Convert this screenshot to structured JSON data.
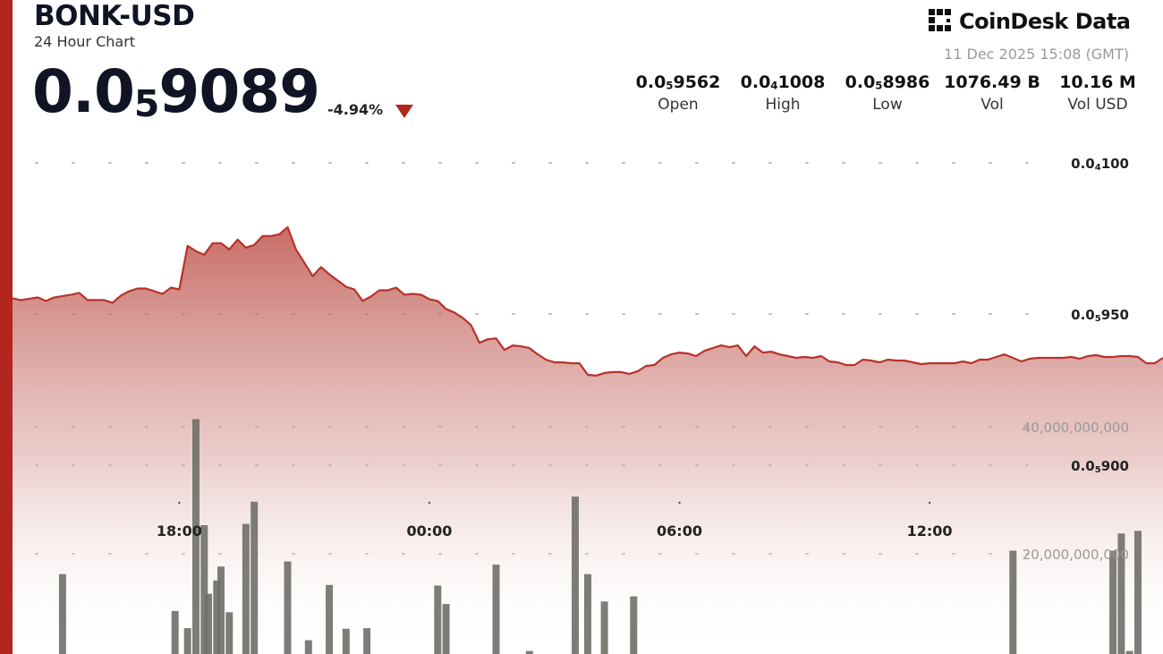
{
  "header": {
    "pair": "BONK-USD",
    "subtitle": "24 Hour Chart",
    "price_main": "0.0",
    "price_sub": "5",
    "price_tail": "9089",
    "change": "-4.94%",
    "brand": "CoinDesk Data",
    "brand_icon": "coindesk-logo-icon",
    "timestamp": "11 Dec 2025 15:08 (GMT)"
  },
  "stats": [
    {
      "main": "0.0",
      "sub": "5",
      "tail": "9562",
      "label": "Open"
    },
    {
      "main": "0.0",
      "sub": "4",
      "tail": "1008",
      "label": "High"
    },
    {
      "main": "0.0",
      "sub": "5",
      "tail": "8986",
      "label": "Low"
    },
    {
      "main": "1076.49 B",
      "sub": "",
      "tail": "",
      "label": "Vol"
    },
    {
      "main": "10.16 M",
      "sub": "",
      "tail": "",
      "label": "Vol USD"
    }
  ],
  "colors": {
    "accent": "#b3261e",
    "line": "#b8322a",
    "volume_bar": "#6f6f68",
    "grid_dot": "#bdbdbd"
  },
  "chart_data": {
    "type": "area",
    "title": "",
    "xlabel": "",
    "ylabel": "",
    "x_ticks": [
      "18:00",
      "00:00",
      "06:00",
      "12:00"
    ],
    "y_ticks": [
      {
        "main": "0.0",
        "sub": "4",
        "tail": "100",
        "value": 1e-05
      },
      {
        "main": "0.0",
        "sub": "5",
        "tail": "950",
        "value": 9.5e-06
      },
      {
        "main": "0.0",
        "sub": "5",
        "tail": "900",
        "value": 9e-06
      }
    ],
    "ylim": [
      8.61e-06,
      1.02e-05
    ],
    "volume_ticks": [
      {
        "label": "40,000,000,000",
        "value": 40000000000
      },
      {
        "label": "20,000,000,000",
        "value": 20000000000
      }
    ],
    "volume_lim": [
      0,
      60000000000
    ],
    "grid": true,
    "price_series": [
      {
        "t": 0.0,
        "v": 9.552
      },
      {
        "t": 0.1,
        "v": 9.5461
      },
      {
        "t": 0.3,
        "v": 9.555
      },
      {
        "t": 0.4,
        "v": 9.5432
      },
      {
        "t": 0.5,
        "v": 9.555
      },
      {
        "t": 0.7,
        "v": 9.5638
      },
      {
        "t": 0.8,
        "v": 9.5697
      },
      {
        "t": 0.9,
        "v": 9.5461
      },
      {
        "t": 1.0,
        "v": 9.5461
      },
      {
        "t": 1.1,
        "v": 9.5461
      },
      {
        "t": 1.2,
        "v": 9.5373
      },
      {
        "t": 1.3,
        "v": 9.5609
      },
      {
        "t": 1.4,
        "v": 9.5756
      },
      {
        "t": 1.5,
        "v": 9.5844
      },
      {
        "t": 1.6,
        "v": 9.5844
      },
      {
        "t": 1.7,
        "v": 9.5756
      },
      {
        "t": 1.8,
        "v": 9.5667
      },
      {
        "t": 1.9,
        "v": 9.5873
      },
      {
        "t": 2.0,
        "v": 9.5815
      },
      {
        "t": 2.1,
        "v": 9.7255
      },
      {
        "t": 2.2,
        "v": 9.7079
      },
      {
        "t": 2.3,
        "v": 9.6961
      },
      {
        "t": 2.4,
        "v": 9.7343
      },
      {
        "t": 2.5,
        "v": 9.7343
      },
      {
        "t": 2.6,
        "v": 9.7137
      },
      {
        "t": 2.7,
        "v": 9.7461
      },
      {
        "t": 2.8,
        "v": 9.7196
      },
      {
        "t": 2.9,
        "v": 9.7284
      },
      {
        "t": 3.0,
        "v": 9.7579
      },
      {
        "t": 3.1,
        "v": 9.7579
      },
      {
        "t": 3.2,
        "v": 9.7637
      },
      {
        "t": 3.3,
        "v": 9.7873
      },
      {
        "t": 3.4,
        "v": 9.7137
      },
      {
        "t": 3.5,
        "v": 9.6696
      },
      {
        "t": 3.6,
        "v": 9.6255
      },
      {
        "t": 3.7,
        "v": 9.6549
      },
      {
        "t": 3.8,
        "v": 9.6314
      },
      {
        "t": 3.9,
        "v": 9.6108
      },
      {
        "t": 4.0,
        "v": 9.5903
      },
      {
        "t": 4.1,
        "v": 9.5815
      },
      {
        "t": 4.2,
        "v": 9.5432
      },
      {
        "t": 4.3,
        "v": 9.5579
      },
      {
        "t": 4.4,
        "v": 9.5785
      },
      {
        "t": 4.5,
        "v": 9.5785
      },
      {
        "t": 4.6,
        "v": 9.5873
      },
      {
        "t": 4.7,
        "v": 9.5638
      },
      {
        "t": 4.8,
        "v": 9.5667
      },
      {
        "t": 4.9,
        "v": 9.5638
      },
      {
        "t": 5.0,
        "v": 9.5491
      },
      {
        "t": 5.1,
        "v": 9.5432
      },
      {
        "t": 5.2,
        "v": 9.5167
      },
      {
        "t": 5.3,
        "v": 9.505
      },
      {
        "t": 5.4,
        "v": 9.4873
      },
      {
        "t": 5.5,
        "v": 9.4637
      },
      {
        "t": 5.6,
        "v": 9.4049
      },
      {
        "t": 5.7,
        "v": 9.4167
      },
      {
        "t": 5.8,
        "v": 9.4196
      },
      {
        "t": 5.9,
        "v": 9.3814
      },
      {
        "t": 6.0,
        "v": 9.3961
      },
      {
        "t": 6.1,
        "v": 9.3932
      },
      {
        "t": 6.2,
        "v": 9.3873
      },
      {
        "t": 6.3,
        "v": 9.3667
      },
      {
        "t": 6.4,
        "v": 9.3491
      },
      {
        "t": 6.5,
        "v": 9.3402
      },
      {
        "t": 6.6,
        "v": 9.3402
      },
      {
        "t": 6.7,
        "v": 9.3373
      },
      {
        "t": 6.8,
        "v": 9.3373
      },
      {
        "t": 6.9,
        "v": 9.299
      },
      {
        "t": 7.0,
        "v": 9.2961
      },
      {
        "t": 7.1,
        "v": 9.3049
      },
      {
        "t": 7.2,
        "v": 9.3079
      },
      {
        "t": 7.3,
        "v": 9.3079
      },
      {
        "t": 7.4,
        "v": 9.302
      },
      {
        "t": 7.5,
        "v": 9.3108
      },
      {
        "t": 7.6,
        "v": 9.3284
      },
      {
        "t": 7.7,
        "v": 9.3314
      },
      {
        "t": 7.8,
        "v": 9.3549
      },
      {
        "t": 7.9,
        "v": 9.3667
      },
      {
        "t": 8.0,
        "v": 9.3726
      },
      {
        "t": 8.1,
        "v": 9.3696
      },
      {
        "t": 8.2,
        "v": 9.3608
      },
      {
        "t": 8.3,
        "v": 9.3784
      },
      {
        "t": 8.4,
        "v": 9.3873
      },
      {
        "t": 8.5,
        "v": 9.3961
      },
      {
        "t": 8.6,
        "v": 9.3902
      },
      {
        "t": 8.7,
        "v": 9.3961
      },
      {
        "t": 8.8,
        "v": 9.3608
      },
      {
        "t": 8.9,
        "v": 9.3932
      },
      {
        "t": 9.0,
        "v": 9.3726
      },
      {
        "t": 9.1,
        "v": 9.3755
      },
      {
        "t": 9.2,
        "v": 9.3667
      },
      {
        "t": 9.3,
        "v": 9.3608
      },
      {
        "t": 9.4,
        "v": 9.3549
      },
      {
        "t": 9.5,
        "v": 9.3579
      },
      {
        "t": 9.6,
        "v": 9.3549
      },
      {
        "t": 9.7,
        "v": 9.3608
      },
      {
        "t": 9.8,
        "v": 9.3432
      },
      {
        "t": 9.9,
        "v": 9.3402
      },
      {
        "t": 10.0,
        "v": 9.3314
      },
      {
        "t": 10.1,
        "v": 9.3314
      },
      {
        "t": 10.2,
        "v": 9.349
      },
      {
        "t": 10.3,
        "v": 9.3461
      },
      {
        "t": 10.4,
        "v": 9.3402
      },
      {
        "t": 10.5,
        "v": 9.349
      },
      {
        "t": 10.6,
        "v": 9.3461
      },
      {
        "t": 10.7,
        "v": 9.3461
      },
      {
        "t": 10.8,
        "v": 9.3402
      },
      {
        "t": 10.9,
        "v": 9.3343
      },
      {
        "t": 11.0,
        "v": 9.3373
      },
      {
        "t": 11.1,
        "v": 9.3373
      },
      {
        "t": 11.2,
        "v": 9.3373
      },
      {
        "t": 11.3,
        "v": 9.3373
      },
      {
        "t": 11.4,
        "v": 9.3432
      },
      {
        "t": 11.5,
        "v": 9.3373
      },
      {
        "t": 11.6,
        "v": 9.349
      },
      {
        "t": 11.7,
        "v": 9.349
      },
      {
        "t": 11.8,
        "v": 9.3579
      },
      {
        "t": 11.9,
        "v": 9.3667
      },
      {
        "t": 12.0,
        "v": 9.3549
      },
      {
        "t": 12.1,
        "v": 9.3432
      },
      {
        "t": 12.2,
        "v": 9.352
      },
      {
        "t": 12.3,
        "v": 9.3549
      },
      {
        "t": 12.4,
        "v": 9.3549
      },
      {
        "t": 12.5,
        "v": 9.3549
      },
      {
        "t": 12.6,
        "v": 9.3549
      },
      {
        "t": 12.7,
        "v": 9.3579
      },
      {
        "t": 12.8,
        "v": 9.352
      },
      {
        "t": 12.9,
        "v": 9.3608
      },
      {
        "t": 13.0,
        "v": 9.3638
      },
      {
        "t": 13.1,
        "v": 9.3579
      },
      {
        "t": 13.2,
        "v": 9.3579
      },
      {
        "t": 13.3,
        "v": 9.3608
      },
      {
        "t": 13.4,
        "v": 9.3608
      },
      {
        "t": 13.5,
        "v": 9.3579
      },
      {
        "t": 13.6,
        "v": 9.3373
      },
      {
        "t": 13.7,
        "v": 9.3373
      },
      {
        "t": 13.8,
        "v": 9.3549
      }
    ],
    "volume_series": [
      {
        "t": 0.0,
        "v": 2.0
      },
      {
        "t": 0.3,
        "v": 0.7
      },
      {
        "t": 0.6,
        "v": 16.8
      },
      {
        "t": 1.25,
        "v": 2.2
      },
      {
        "t": 1.35,
        "v": 0.2
      },
      {
        "t": 1.45,
        "v": 0.2
      },
      {
        "t": 1.9,
        "v": 0.2
      },
      {
        "t": 1.95,
        "v": 11.0
      },
      {
        "t": 2.0,
        "v": 2.0
      },
      {
        "t": 2.05,
        "v": 2.7
      },
      {
        "t": 2.1,
        "v": 8.3
      },
      {
        "t": 2.2,
        "v": 41.2
      },
      {
        "t": 2.3,
        "v": 24.5
      },
      {
        "t": 2.35,
        "v": 13.7
      },
      {
        "t": 2.45,
        "v": 15.8
      },
      {
        "t": 2.5,
        "v": 18.0
      },
      {
        "t": 2.6,
        "v": 10.8
      },
      {
        "t": 2.7,
        "v": 0.3
      },
      {
        "t": 2.8,
        "v": 24.7
      },
      {
        "t": 2.9,
        "v": 28.2
      },
      {
        "t": 3.3,
        "v": 18.8
      },
      {
        "t": 3.5,
        "v": 0.8
      },
      {
        "t": 3.55,
        "v": 6.4
      },
      {
        "t": 3.7,
        "v": 1.2
      },
      {
        "t": 3.8,
        "v": 15.1
      },
      {
        "t": 4.0,
        "v": 8.2
      },
      {
        "t": 4.15,
        "v": 3.5
      },
      {
        "t": 4.25,
        "v": 8.3
      },
      {
        "t": 4.35,
        "v": 1.3
      },
      {
        "t": 4.9,
        "v": 1.0
      },
      {
        "t": 5.0,
        "v": 2.6
      },
      {
        "t": 5.1,
        "v": 15.0
      },
      {
        "t": 5.2,
        "v": 12.1
      },
      {
        "t": 5.5,
        "v": 3.7
      },
      {
        "t": 5.6,
        "v": 0.8
      },
      {
        "t": 5.7,
        "v": 1.2
      },
      {
        "t": 5.8,
        "v": 18.3
      },
      {
        "t": 5.9,
        "v": 3.5
      },
      {
        "t": 6.2,
        "v": 4.7
      },
      {
        "t": 6.3,
        "v": 2.3
      },
      {
        "t": 6.55,
        "v": 0.6
      },
      {
        "t": 6.75,
        "v": 29.0
      },
      {
        "t": 6.85,
        "v": 0.3
      },
      {
        "t": 6.9,
        "v": 16.8
      },
      {
        "t": 6.95,
        "v": 1.3
      },
      {
        "t": 7.1,
        "v": 12.5
      },
      {
        "t": 7.25,
        "v": 1.4
      },
      {
        "t": 7.45,
        "v": 13.3
      },
      {
        "t": 7.55,
        "v": 3.7
      },
      {
        "t": 7.6,
        "v": 2.0
      },
      {
        "t": 7.75,
        "v": 2.2
      },
      {
        "t": 7.8,
        "v": 4.2
      },
      {
        "t": 8.1,
        "v": 1.2
      },
      {
        "t": 8.2,
        "v": 0.4
      },
      {
        "t": 8.25,
        "v": 0.2
      },
      {
        "t": 8.3,
        "v": 0.2
      },
      {
        "t": 10.6,
        "v": 2.2
      },
      {
        "t": 11.3,
        "v": 3.2
      },
      {
        "t": 11.4,
        "v": 0.6
      },
      {
        "t": 11.7,
        "v": 4.0
      },
      {
        "t": 11.9,
        "v": 1.7
      },
      {
        "t": 12.0,
        "v": 20.5
      },
      {
        "t": 13.2,
        "v": 20.5
      },
      {
        "t": 13.3,
        "v": 23.2
      },
      {
        "t": 13.4,
        "v": 4.7
      },
      {
        "t": 13.5,
        "v": 23.6
      }
    ]
  }
}
